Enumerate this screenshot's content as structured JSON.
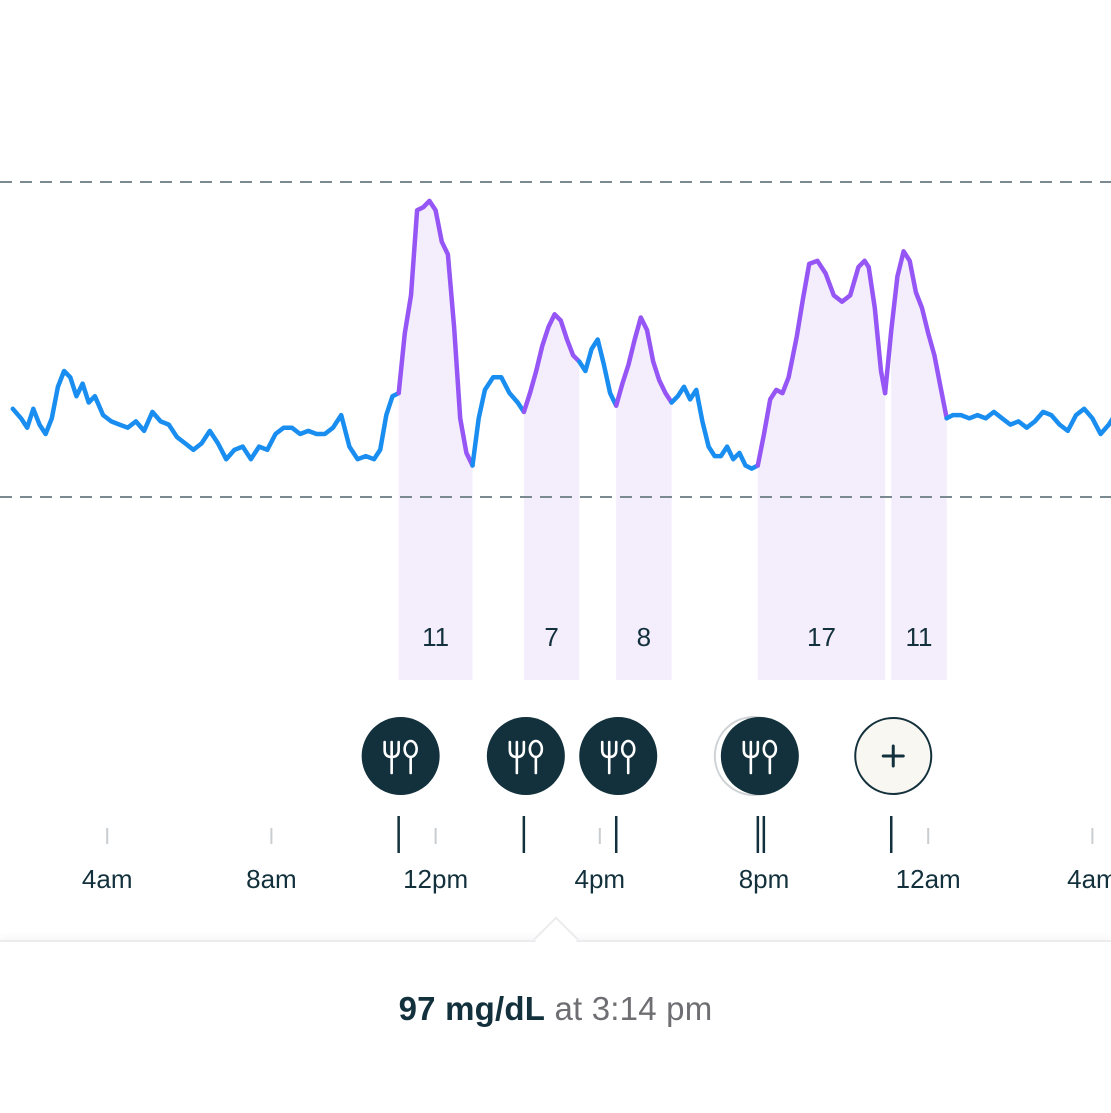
{
  "chart_data": {
    "type": "line",
    "x_unit": "hours from midnight (day 1)",
    "x_ticks": [
      {
        "value": 4,
        "label": "4am"
      },
      {
        "value": 8,
        "label": "8am"
      },
      {
        "value": 12,
        "label": "12pm"
      },
      {
        "value": 16,
        "label": "4pm"
      },
      {
        "value": 20,
        "label": "8pm"
      },
      {
        "value": 24,
        "label": "12am"
      },
      {
        "value": 28,
        "label": "4am"
      }
    ],
    "xlim": [
      1.7,
      28.7
    ],
    "target_range_lines": [
      "upper",
      "lower"
    ],
    "series": [
      {
        "color": "#1a8ef0",
        "values": [
          [
            1.7,
            0.28
          ],
          [
            1.9,
            0.25
          ],
          [
            2.05,
            0.22
          ],
          [
            2.2,
            0.28
          ],
          [
            2.35,
            0.23
          ],
          [
            2.5,
            0.2
          ],
          [
            2.65,
            0.25
          ],
          [
            2.8,
            0.35
          ],
          [
            2.95,
            0.4
          ],
          [
            3.1,
            0.38
          ],
          [
            3.25,
            0.32
          ],
          [
            3.4,
            0.36
          ],
          [
            3.55,
            0.3
          ],
          [
            3.7,
            0.32
          ],
          [
            3.9,
            0.26
          ],
          [
            4.1,
            0.24
          ],
          [
            4.3,
            0.23
          ],
          [
            4.5,
            0.22
          ],
          [
            4.7,
            0.24
          ],
          [
            4.9,
            0.21
          ],
          [
            5.1,
            0.27
          ],
          [
            5.3,
            0.24
          ],
          [
            5.5,
            0.23
          ],
          [
            5.7,
            0.19
          ],
          [
            5.9,
            0.17
          ],
          [
            6.1,
            0.15
          ],
          [
            6.3,
            0.17
          ],
          [
            6.5,
            0.21
          ],
          [
            6.7,
            0.17
          ],
          [
            6.9,
            0.12
          ],
          [
            7.1,
            0.15
          ],
          [
            7.3,
            0.16
          ],
          [
            7.5,
            0.12
          ],
          [
            7.7,
            0.16
          ],
          [
            7.9,
            0.15
          ],
          [
            8.1,
            0.2
          ],
          [
            8.3,
            0.22
          ],
          [
            8.5,
            0.22
          ],
          [
            8.7,
            0.2
          ],
          [
            8.9,
            0.21
          ],
          [
            9.1,
            0.2
          ],
          [
            9.3,
            0.2
          ],
          [
            9.5,
            0.22
          ],
          [
            9.7,
            0.26
          ],
          [
            9.9,
            0.16
          ],
          [
            10.1,
            0.12
          ],
          [
            10.3,
            0.13
          ],
          [
            10.5,
            0.12
          ],
          [
            10.65,
            0.15
          ],
          [
            10.8,
            0.26
          ],
          [
            10.95,
            0.32
          ],
          [
            11.1,
            0.33
          ]
        ]
      },
      {
        "color": "#9656f5",
        "values": [
          [
            11.1,
            0.33
          ],
          [
            11.25,
            0.52
          ],
          [
            11.4,
            0.64
          ],
          [
            11.55,
            0.91
          ],
          [
            11.7,
            0.92
          ],
          [
            11.85,
            0.94
          ],
          [
            12.0,
            0.91
          ],
          [
            12.15,
            0.81
          ],
          [
            12.3,
            0.77
          ],
          [
            12.45,
            0.54
          ],
          [
            12.6,
            0.25
          ],
          [
            12.75,
            0.14
          ],
          [
            12.9,
            0.1
          ]
        ]
      },
      {
        "color": "#1a8ef0",
        "values": [
          [
            12.9,
            0.1
          ],
          [
            13.05,
            0.25
          ],
          [
            13.2,
            0.34
          ],
          [
            13.4,
            0.38
          ],
          [
            13.6,
            0.38
          ],
          [
            13.8,
            0.33
          ],
          [
            14.0,
            0.3
          ],
          [
            14.15,
            0.27
          ]
        ]
      },
      {
        "color": "#9656f5",
        "values": [
          [
            14.15,
            0.27
          ],
          [
            14.3,
            0.33
          ],
          [
            14.45,
            0.4
          ],
          [
            14.6,
            0.48
          ],
          [
            14.75,
            0.54
          ],
          [
            14.9,
            0.58
          ],
          [
            15.05,
            0.56
          ],
          [
            15.2,
            0.5
          ],
          [
            15.35,
            0.45
          ],
          [
            15.5,
            0.43
          ]
        ]
      },
      {
        "color": "#1a8ef0",
        "values": [
          [
            15.5,
            0.43
          ],
          [
            15.65,
            0.4
          ],
          [
            15.8,
            0.47
          ],
          [
            15.95,
            0.5
          ],
          [
            16.1,
            0.42
          ],
          [
            16.25,
            0.33
          ],
          [
            16.4,
            0.29
          ]
        ]
      },
      {
        "color": "#9656f5",
        "values": [
          [
            16.4,
            0.29
          ],
          [
            16.55,
            0.36
          ],
          [
            16.7,
            0.42
          ],
          [
            16.85,
            0.5
          ],
          [
            17.0,
            0.57
          ],
          [
            17.15,
            0.53
          ],
          [
            17.3,
            0.43
          ],
          [
            17.45,
            0.37
          ],
          [
            17.6,
            0.33
          ],
          [
            17.75,
            0.3
          ]
        ]
      },
      {
        "color": "#1a8ef0",
        "values": [
          [
            17.75,
            0.3
          ],
          [
            17.9,
            0.32
          ],
          [
            18.05,
            0.35
          ],
          [
            18.2,
            0.31
          ],
          [
            18.35,
            0.34
          ],
          [
            18.5,
            0.24
          ],
          [
            18.65,
            0.16
          ],
          [
            18.8,
            0.13
          ],
          [
            18.95,
            0.13
          ],
          [
            19.1,
            0.16
          ],
          [
            19.25,
            0.12
          ],
          [
            19.4,
            0.14
          ],
          [
            19.55,
            0.1
          ],
          [
            19.7,
            0.09
          ],
          [
            19.85,
            0.1
          ]
        ]
      },
      {
        "color": "#9656f5",
        "values": [
          [
            19.85,
            0.1
          ],
          [
            20.0,
            0.2
          ],
          [
            20.15,
            0.31
          ],
          [
            20.3,
            0.34
          ],
          [
            20.45,
            0.33
          ],
          [
            20.6,
            0.38
          ],
          [
            20.8,
            0.51
          ],
          [
            20.95,
            0.63
          ],
          [
            21.1,
            0.74
          ],
          [
            21.3,
            0.75
          ],
          [
            21.5,
            0.71
          ],
          [
            21.7,
            0.64
          ],
          [
            21.9,
            0.62
          ],
          [
            22.1,
            0.64
          ],
          [
            22.3,
            0.73
          ],
          [
            22.45,
            0.75
          ],
          [
            22.55,
            0.73
          ],
          [
            22.7,
            0.6
          ],
          [
            22.85,
            0.4
          ],
          [
            22.95,
            0.33
          ]
        ]
      },
      {
        "color": "#9656f5",
        "values": [
          [
            22.95,
            0.33
          ],
          [
            23.1,
            0.53
          ],
          [
            23.25,
            0.7
          ],
          [
            23.4,
            0.78
          ],
          [
            23.55,
            0.75
          ],
          [
            23.7,
            0.65
          ],
          [
            23.85,
            0.6
          ],
          [
            24.0,
            0.52
          ],
          [
            24.15,
            0.45
          ],
          [
            24.3,
            0.35
          ],
          [
            24.45,
            0.25
          ]
        ]
      },
      {
        "color": "#1a8ef0",
        "values": [
          [
            24.45,
            0.25
          ],
          [
            24.6,
            0.26
          ],
          [
            24.8,
            0.26
          ],
          [
            25.0,
            0.25
          ],
          [
            25.2,
            0.26
          ],
          [
            25.4,
            0.25
          ],
          [
            25.6,
            0.27
          ],
          [
            25.8,
            0.25
          ],
          [
            26.0,
            0.23
          ],
          [
            26.2,
            0.24
          ],
          [
            26.4,
            0.22
          ],
          [
            26.6,
            0.24
          ],
          [
            26.8,
            0.27
          ],
          [
            27.0,
            0.26
          ],
          [
            27.2,
            0.23
          ],
          [
            27.4,
            0.21
          ],
          [
            27.6,
            0.26
          ],
          [
            27.8,
            0.28
          ],
          [
            28.0,
            0.25
          ],
          [
            28.2,
            0.2
          ],
          [
            28.4,
            0.23
          ],
          [
            28.6,
            0.27
          ],
          [
            28.7,
            0.25
          ]
        ]
      }
    ],
    "meal_windows": [
      {
        "start": 11.1,
        "end": 12.9,
        "score": "11"
      },
      {
        "start": 14.15,
        "end": 15.5,
        "score": "7"
      },
      {
        "start": 16.4,
        "end": 17.75,
        "score": "8"
      },
      {
        "start": 19.85,
        "end": 22.95,
        "score": "17"
      },
      {
        "start": 23.1,
        "end": 24.45,
        "score": "11"
      }
    ],
    "meal_markers": [
      {
        "time": 11.1,
        "icon": "fork-knife-icon",
        "stacked": false
      },
      {
        "time": 14.15,
        "icon": "fork-knife-icon",
        "stacked": false
      },
      {
        "time": 16.4,
        "icon": "fork-knife-icon",
        "stacked": false
      },
      {
        "time": 19.85,
        "icon": "fork-knife-icon",
        "stacked": true
      },
      {
        "time": 23.1,
        "icon": "plus-icon",
        "stacked": false
      }
    ],
    "colors": {
      "in_range_line": "#1a8ef0",
      "spike_line": "#9656f5",
      "meal_window_fill": "#f3edfc",
      "target_line": "#7b8a91",
      "marker_fill": "#13313c",
      "add_marker_fill": "#f8f7f2",
      "tick_label": "#13313c"
    }
  },
  "footer": {
    "reading_value": "97 mg/dL",
    "reading_time": "at 3:14 pm"
  }
}
